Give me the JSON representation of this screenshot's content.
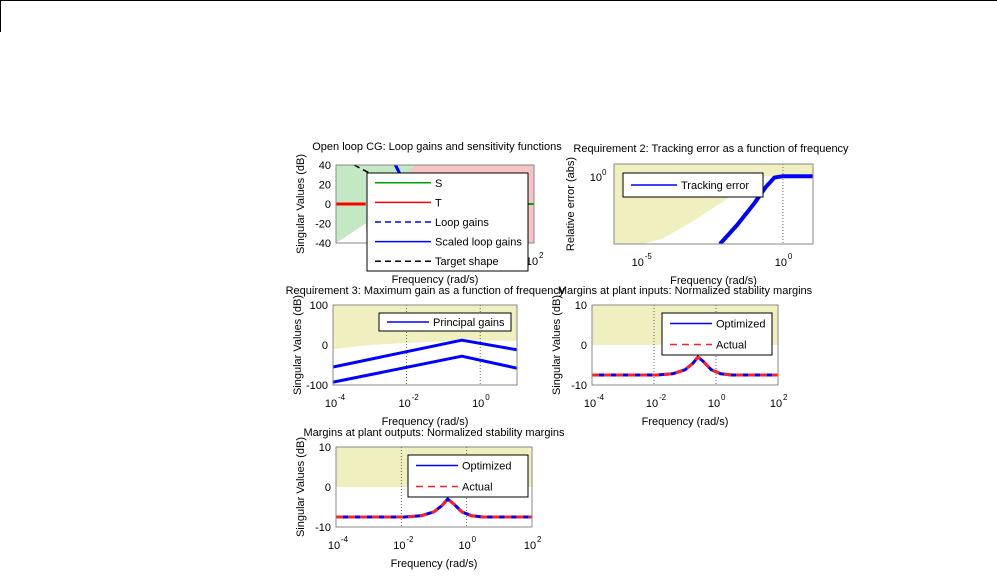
{
  "chart_data": [
    {
      "type": "line",
      "title": "Open loop CG: Loop gains and sensitivity functions",
      "xlabel": "Frequency (rad/s)",
      "ylabel": "Singular Values (dB)",
      "xscale": "log",
      "xlim_log10": [
        -4,
        2
      ],
      "ylim": [
        -40,
        40
      ],
      "yticks": [
        "40",
        "20",
        "0",
        "-20",
        "-40"
      ],
      "ytick_values": [
        40,
        20,
        0,
        -20,
        -40
      ],
      "xticks": [
        {
          "base": "10",
          "exp": "2",
          "log10": 2
        }
      ],
      "regions": [
        {
          "color": "#f6c4c4",
          "pts": [
            [
              -4,
              40
            ],
            [
              2,
              40
            ],
            [
              2,
              -40
            ],
            [
              -4,
              -40
            ]
          ]
        },
        {
          "color": "#c4e8c4",
          "pts": [
            [
              -4,
              40
            ],
            [
              -1.6,
              40
            ],
            [
              -3.1,
              -20
            ],
            [
              -4,
              -40
            ]
          ]
        },
        {
          "color": "#ffffff",
          "pts": [
            [
              -4,
              -40
            ],
            [
              -3.1,
              -20
            ],
            [
              -3.05,
              -40
            ]
          ]
        }
      ],
      "series": [
        {
          "name": "S",
          "color": "#00a000",
          "dash": "",
          "width": 2,
          "x": [
            1.8,
            2
          ],
          "y": [
            0,
            0
          ]
        },
        {
          "name": "T",
          "color": "#ff0000",
          "dash": "",
          "width": 3,
          "x": [
            -4,
            -3.1
          ],
          "y": [
            0,
            0
          ]
        },
        {
          "name": "Loop gains",
          "color": "#0000ff",
          "dash": "6,4",
          "width": 3,
          "x": [
            -2.2,
            -1.9
          ],
          "y": [
            40,
            20
          ]
        },
        {
          "name": "Scaled loop gains",
          "color": "#0000ff",
          "dash": "",
          "width": 3,
          "x": [
            -2.2,
            -1.9
          ],
          "y": [
            40,
            20
          ]
        },
        {
          "name": "Target shape",
          "color": "#000000",
          "dash": "6,4",
          "width": 1.5,
          "x": [
            -3.45,
            -3.0
          ],
          "y": [
            40,
            32
          ]
        }
      ],
      "legend": [
        "S",
        "T",
        "Loop gains",
        "Scaled loop gains",
        "Target shape"
      ]
    },
    {
      "type": "line",
      "title": "Requirement 2: Tracking error as a function of frequency",
      "xlabel": "Frequency (rad/s)",
      "ylabel": "Relative error (abs)",
      "xscale": "log",
      "yscale": "log",
      "xlim_log10": [
        -5.9,
        1.05
      ],
      "ylim_log10": [
        -2.5,
        0.45
      ],
      "yticks": [
        {
          "base": "10",
          "exp": "0",
          "log10": 0
        }
      ],
      "xticks": [
        {
          "base": "10",
          "exp": "-5",
          "log10": -5
        },
        {
          "base": "10",
          "exp": "0",
          "log10": 0
        }
      ],
      "vgrid_log10": [
        0
      ],
      "regions": [
        {
          "color": "#efefc0",
          "pts": [
            [
              -5.9,
              0.45
            ],
            [
              1.05,
              0.45
            ],
            [
              1.05,
              0
            ],
            [
              -0.9,
              0
            ],
            [
              -1.6,
              -0.6
            ],
            [
              -3.2,
              -1.7
            ],
            [
              -4.2,
              -2.3
            ],
            [
              -4.9,
              -2.5
            ],
            [
              -5.9,
              -2.5
            ]
          ]
        }
      ],
      "series": [
        {
          "name": "Tracking error",
          "color": "#0000ff",
          "dash": "",
          "width": 4,
          "x": [
            -2.2,
            -1.6,
            -1.0,
            -0.6,
            -0.3,
            0,
            1.05
          ],
          "y": [
            -2.5,
            -1.8,
            -1.0,
            -0.4,
            -0.05,
            0,
            0
          ]
        }
      ],
      "legend": [
        "Tracking error"
      ]
    },
    {
      "type": "line",
      "title": "Requirement 3: Maximum gain as a function of frequency",
      "xlabel": "Frequency (rad/s)",
      "ylabel": "Singular Values (dB)",
      "xscale": "log",
      "xlim_log10": [
        -4,
        1
      ],
      "ylim": [
        -100,
        100
      ],
      "yticks": [
        "100",
        "0",
        "-100"
      ],
      "ytick_values": [
        100,
        0,
        -100
      ],
      "xticks": [
        {
          "base": "10",
          "exp": "-4",
          "log10": -4
        },
        {
          "base": "10",
          "exp": "-2",
          "log10": -2
        },
        {
          "base": "10",
          "exp": "0",
          "log10": 0
        }
      ],
      "vgrid_log10": [
        -2,
        0
      ],
      "regions": [
        {
          "color": "#efefc0",
          "pts": [
            [
              -4,
              100
            ],
            [
              1,
              100
            ],
            [
              1,
              10
            ],
            [
              -0.5,
              12
            ],
            [
              -3,
              0
            ],
            [
              -4,
              -10
            ]
          ]
        }
      ],
      "series": [
        {
          "name": "Principal gains",
          "color": "#0000ff",
          "dash": "",
          "width": 3,
          "x": [
            -4,
            -0.5,
            1
          ],
          "y": [
            -55,
            12,
            -12
          ]
        },
        {
          "name": "Principal gains",
          "color": "#0000ff",
          "dash": "",
          "width": 3,
          "x": [
            -4,
            -0.5,
            1
          ],
          "y": [
            -93,
            -28,
            -58
          ]
        }
      ],
      "legend": [
        "Principal gains"
      ]
    },
    {
      "type": "line",
      "title": "Margins at plant inputs: Normalized stability margins",
      "xlabel": "Frequency (rad/s)",
      "ylabel": "Singular Values (dB)",
      "xscale": "log",
      "xlim_log10": [
        -4,
        2
      ],
      "ylim": [
        -10,
        10
      ],
      "yticks": [
        "10",
        "0",
        "-10"
      ],
      "ytick_values": [
        10,
        0,
        -10
      ],
      "xticks": [
        {
          "base": "10",
          "exp": "-4",
          "log10": -4
        },
        {
          "base": "10",
          "exp": "-2",
          "log10": -2
        },
        {
          "base": "10",
          "exp": "0",
          "log10": 0
        },
        {
          "base": "10",
          "exp": "2",
          "log10": 2
        }
      ],
      "vgrid_log10": [
        -2,
        0
      ],
      "regions": [
        {
          "color": "#efefc0",
          "pts": [
            [
              -4,
              10
            ],
            [
              2,
              10
            ],
            [
              2,
              0
            ],
            [
              -4,
              0
            ]
          ]
        }
      ],
      "series": [
        {
          "name": "Optimized",
          "color": "#0000ff",
          "dash": "",
          "width": 3,
          "x": [
            -4,
            -1.9,
            -1.4,
            -1.0,
            -0.75,
            -0.58,
            -0.4,
            -0.15,
            0.15,
            0.5,
            2
          ],
          "y": [
            -7.5,
            -7.5,
            -7.2,
            -6.2,
            -4.6,
            -3.0,
            -4.2,
            -6.2,
            -7.2,
            -7.5,
            -7.5
          ]
        },
        {
          "name": "Actual",
          "color": "#ff2020",
          "dash": "7,5",
          "width": 3,
          "x": [
            -4,
            -1.9,
            -1.4,
            -1.0,
            -0.75,
            -0.58,
            -0.4,
            -0.15,
            0.15,
            0.5,
            2
          ],
          "y": [
            -7.5,
            -7.5,
            -7.2,
            -6.2,
            -4.6,
            -3.0,
            -4.2,
            -6.2,
            -7.2,
            -7.5,
            -7.5
          ]
        }
      ],
      "legend": [
        "Optimized",
        "Actual"
      ]
    },
    {
      "type": "line",
      "title": "Margins at plant outputs: Normalized stability margins",
      "xlabel": "Frequency (rad/s)",
      "ylabel": "Singular Values (dB)",
      "xscale": "log",
      "xlim_log10": [
        -4,
        2
      ],
      "ylim": [
        -10,
        10
      ],
      "yticks": [
        "10",
        "0",
        "-10"
      ],
      "ytick_values": [
        10,
        0,
        -10
      ],
      "xticks": [
        {
          "base": "10",
          "exp": "-4",
          "log10": -4
        },
        {
          "base": "10",
          "exp": "-2",
          "log10": -2
        },
        {
          "base": "10",
          "exp": "0",
          "log10": 0
        },
        {
          "base": "10",
          "exp": "2",
          "log10": 2
        }
      ],
      "vgrid_log10": [
        -2,
        0
      ],
      "regions": [
        {
          "color": "#efefc0",
          "pts": [
            [
              -4,
              10
            ],
            [
              2,
              10
            ],
            [
              2,
              0
            ],
            [
              -4,
              0
            ]
          ]
        }
      ],
      "series": [
        {
          "name": "Optimized",
          "color": "#0000ff",
          "dash": "",
          "width": 3,
          "x": [
            -4,
            -1.9,
            -1.4,
            -1.0,
            -0.75,
            -0.58,
            -0.4,
            -0.15,
            0.15,
            0.5,
            2
          ],
          "y": [
            -7.5,
            -7.5,
            -7.2,
            -6.2,
            -4.6,
            -3.0,
            -4.2,
            -6.2,
            -7.2,
            -7.5,
            -7.5
          ]
        },
        {
          "name": "Actual",
          "color": "#ff2020",
          "dash": "7,5",
          "width": 3,
          "x": [
            -4,
            -1.9,
            -1.4,
            -1.0,
            -0.75,
            -0.58,
            -0.4,
            -0.15,
            0.15,
            0.5,
            2
          ],
          "y": [
            -7.5,
            -7.5,
            -7.2,
            -6.2,
            -4.6,
            -3.0,
            -4.2,
            -6.2,
            -7.2,
            -7.5,
            -7.5
          ]
        }
      ],
      "legend": [
        "Optimized",
        "Actual"
      ]
    }
  ]
}
